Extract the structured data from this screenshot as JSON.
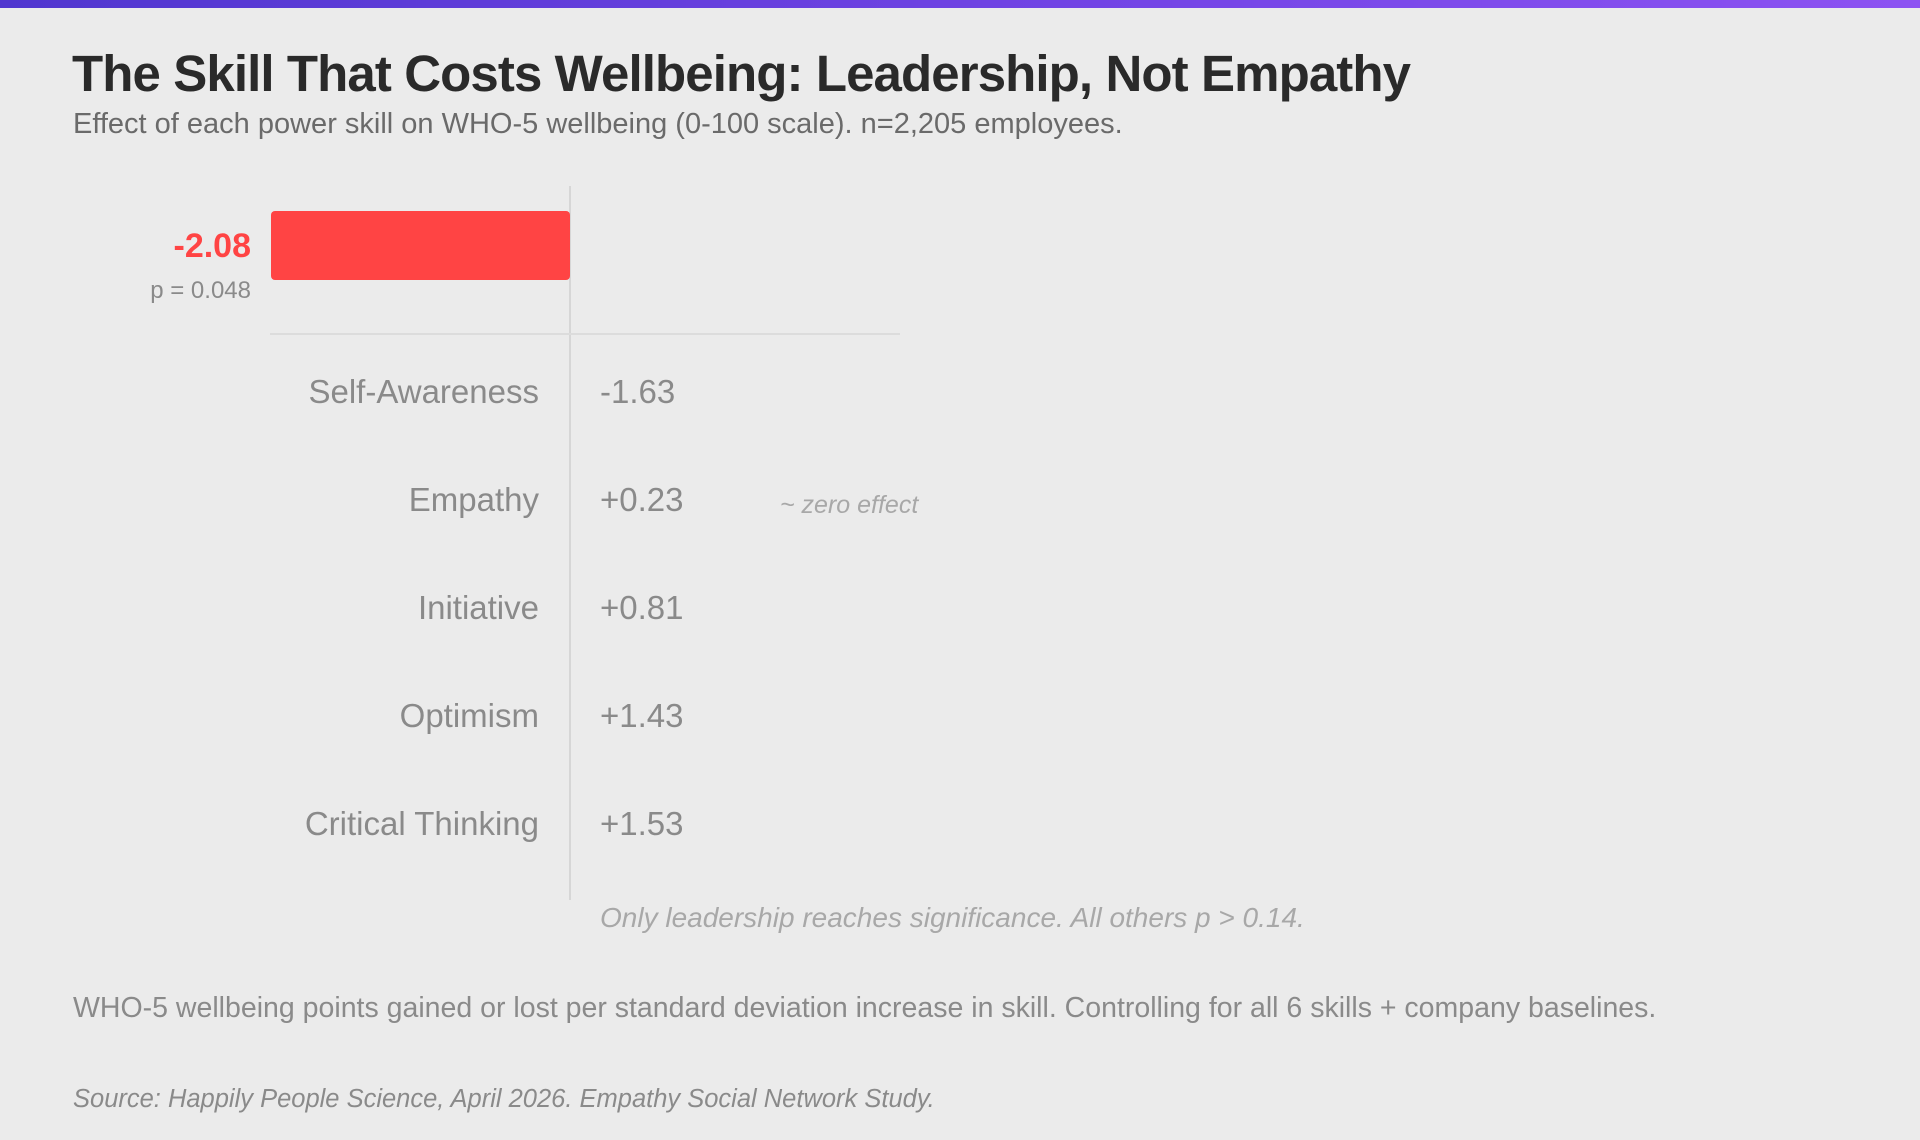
{
  "header": {
    "title": "The Skill That Costs Wellbeing: Leadership, Not Empathy",
    "subtitle": "Effect of each power skill on WHO-5 wellbeing (0-100 scale). n=2,205 employees."
  },
  "colors": {
    "highlight": "#ff4444",
    "muted_text": "#8a8a8a",
    "background": "#ebebeb",
    "top_bar_gradient": [
      "#5036cf",
      "#8d52f2"
    ]
  },
  "chart_data": {
    "type": "bar",
    "orientation": "horizontal",
    "title": "The Skill That Costs Wellbeing: Leadership, Not Empathy",
    "subtitle": "Effect of each power skill on WHO-5 wellbeing (0-100 scale). n=2,205 employees.",
    "zero_line": true,
    "grid": false,
    "highlighted": {
      "label": "",
      "value": -2.08,
      "value_label": "-2.08",
      "p_label": "p = 0.048",
      "color": "#ff4444"
    },
    "rows": [
      {
        "label": "Self-Awareness",
        "value": -1.63,
        "value_label": "-1.63"
      },
      {
        "label": "Empathy",
        "value": 0.23,
        "value_label": "+0.23",
        "annotation": "~ zero effect"
      },
      {
        "label": "Initiative",
        "value": 0.81,
        "value_label": "+0.81"
      },
      {
        "label": "Optimism",
        "value": 1.43,
        "value_label": "+1.43"
      },
      {
        "label": "Critical Thinking",
        "value": 1.53,
        "value_label": "+1.53"
      }
    ],
    "significance_note": "Only leadership reaches significance. All others p > 0.14."
  },
  "footer": {
    "note": "WHO-5 wellbeing points gained or lost per standard deviation increase in skill. Controlling for all 6 skills + company baselines.",
    "source": "Source: Happily People Science, April 2026. Empathy Social Network Study."
  }
}
